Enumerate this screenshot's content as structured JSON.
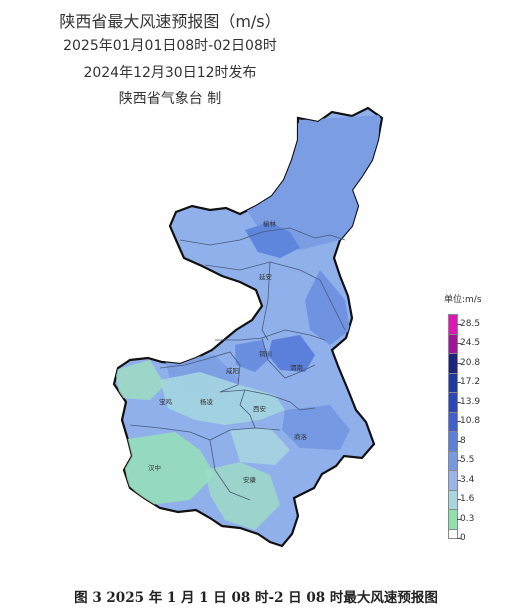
{
  "header": {
    "title": "陕西省最大风速预报图（m/s）",
    "period": "2025年01月01日08时-02日08时",
    "issued": "2024年12月30日12时发布",
    "producer": "陕西省气象台 制"
  },
  "map": {
    "cities": [
      "榆林",
      "延安",
      "铜川",
      "渭南",
      "宝鸡",
      "杨凌",
      "咸阳",
      "西安",
      "商洛",
      "汉中",
      "安康"
    ]
  },
  "legend": {
    "title": "单位:m/s",
    "levels": [
      {
        "label": "28.5",
        "color": "#e015b8"
      },
      {
        "label": "24.5",
        "color": "#a0139a"
      },
      {
        "label": "20.8",
        "color": "#1a237e"
      },
      {
        "label": "17.2",
        "color": "#1e3aa0"
      },
      {
        "label": "13.9",
        "color": "#2947b8"
      },
      {
        "label": "10.8",
        "color": "#3f5fd0"
      },
      {
        "label": "8",
        "color": "#5a80dc"
      },
      {
        "label": "5.5",
        "color": "#7599e2"
      },
      {
        "label": "3.4",
        "color": "#98b6ea"
      },
      {
        "label": "1.6",
        "color": "#a8d6e0"
      },
      {
        "label": "0.3",
        "color": "#90e0b0"
      },
      {
        "label": "0",
        "color": "#ffffff"
      }
    ]
  },
  "caption": "图 3  2025 年 1 月 1 日 08 时-2 日 08 时最大风速预报图"
}
